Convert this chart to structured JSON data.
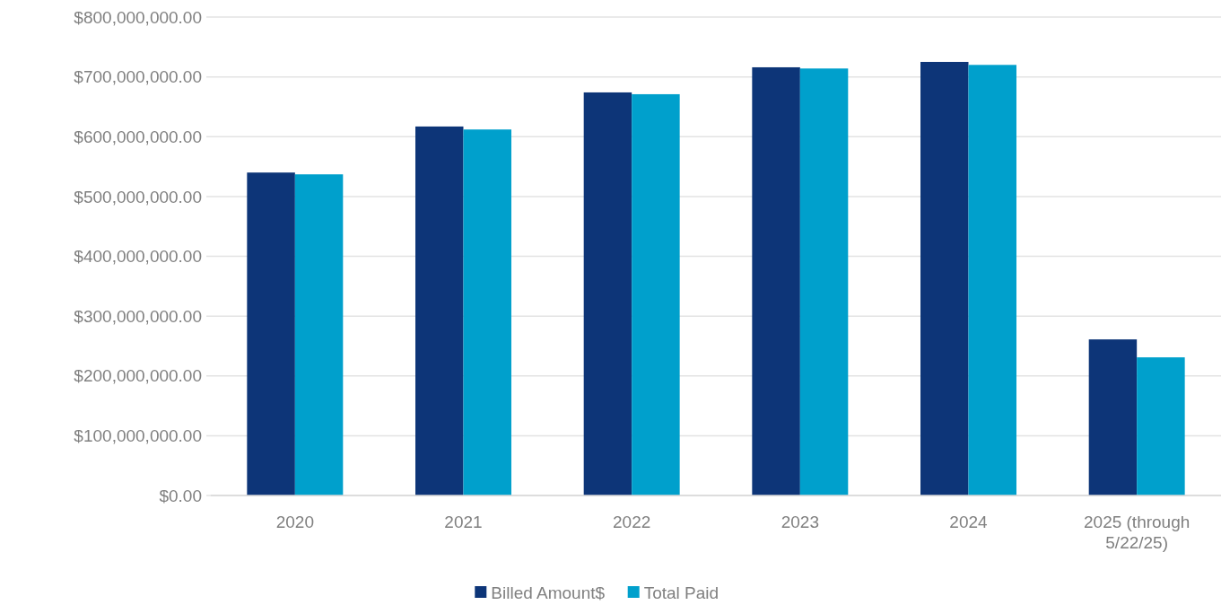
{
  "chart_data": {
    "type": "bar",
    "categories": [
      "2020",
      "2021",
      "2022",
      "2023",
      "2024",
      "2025 (through 5/22/25)"
    ],
    "series": [
      {
        "name": "Billed Amount$",
        "color": "#0d3578",
        "values": [
          540000000,
          617000000,
          674000000,
          716000000,
          725000000,
          261000000
        ]
      },
      {
        "name": "Total Paid",
        "color": "#00a0cc",
        "values": [
          537000000,
          612000000,
          671000000,
          714000000,
          720000000,
          231000000
        ]
      }
    ],
    "ylim": [
      0,
      800000000
    ],
    "yticks": [
      {
        "value": 0,
        "label": "$0.00"
      },
      {
        "value": 100000000,
        "label": "$100,000,000.00"
      },
      {
        "value": 200000000,
        "label": "$200,000,000.00"
      },
      {
        "value": 300000000,
        "label": "$300,000,000.00"
      },
      {
        "value": 400000000,
        "label": "$400,000,000.00"
      },
      {
        "value": 500000000,
        "label": "$500,000,000.00"
      },
      {
        "value": 600000000,
        "label": "$600,000,000.00"
      },
      {
        "value": 700000000,
        "label": "$700,000,000.00"
      },
      {
        "value": 800000000,
        "label": "$800,000,000.00"
      }
    ],
    "grid": "y",
    "legend": "bottom"
  }
}
